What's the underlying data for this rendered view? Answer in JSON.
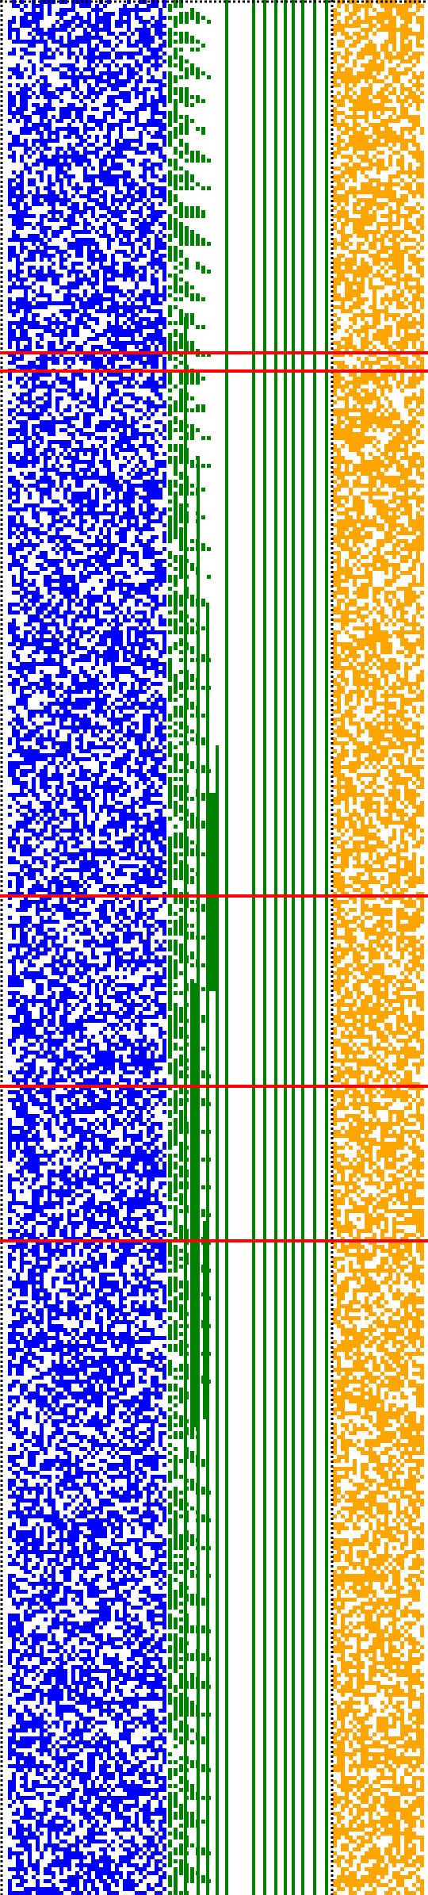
{
  "visualization": {
    "kind": "cellular-automaton-evolution",
    "panels": [
      {
        "name": "left-panel",
        "color": "#0000ff",
        "pattern": "random-noise"
      },
      {
        "name": "middle-panel",
        "color": "#008000",
        "pattern": "staircase-and-vertical-stripes"
      },
      {
        "name": "right-panel",
        "color": "#ffa500",
        "pattern": "sparse-noise"
      }
    ],
    "highlight_line_color": "#ff0000",
    "border_style": "dotted",
    "border_color": "#000000",
    "background_color": "#ffffff",
    "highlighted_row_count": 5
  }
}
